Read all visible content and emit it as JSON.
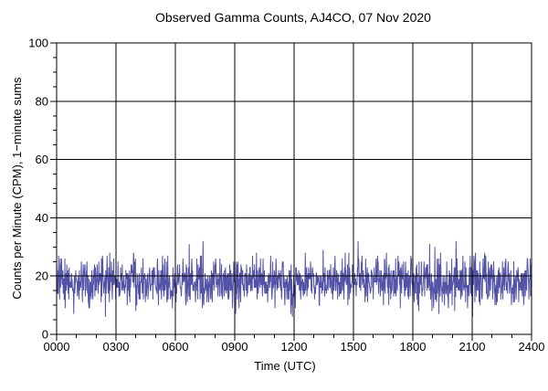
{
  "figure": {
    "background_color": "#ffffff",
    "text_color": "#000000"
  },
  "chart_data": {
    "type": "line",
    "title": "Observed Gamma Counts, AJ4CO, 07 Nov 2020",
    "xlabel": "Time (UTC)",
    "ylabel": "Counts per Minute (CPM), 1−minute sums",
    "xlim_minutes": [
      0,
      1440
    ],
    "ylim": [
      0,
      100
    ],
    "x_tick_minutes": [
      0,
      180,
      360,
      540,
      720,
      900,
      1080,
      1260,
      1440
    ],
    "x_tick_labels": [
      "0000",
      "0300",
      "0600",
      "0900",
      "1200",
      "1500",
      "1800",
      "2100",
      "2400"
    ],
    "x_minor_tick_step_minutes": 60,
    "y_tick_values": [
      0,
      20,
      40,
      60,
      80,
      100
    ],
    "y_tick_labels": [
      "0",
      "20",
      "40",
      "60",
      "80",
      "100"
    ],
    "y_minor_tick_step": 5,
    "grid": {
      "major_x": true,
      "major_y": true,
      "minor": false,
      "color": "#000000"
    },
    "axes_color": "#000000",
    "legend": "none",
    "series": [
      {
        "name": "gamma-counts-1min-sums",
        "color": "#4343A0",
        "points": 1441,
        "sample_interval_minutes": 1,
        "distribution": "poisson",
        "lambda": 18,
        "seed": 20201107,
        "observed_mean_cpm": 18,
        "observed_min_cpm": 5,
        "observed_max_cpm": 34
      }
    ]
  }
}
